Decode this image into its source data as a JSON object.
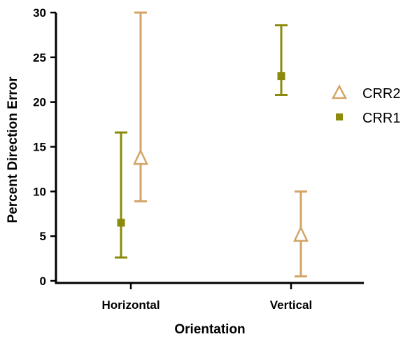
{
  "chart_data": {
    "type": "scatter",
    "title": "",
    "xlabel": "Orientation",
    "ylabel": "Percent Direction Error",
    "categories": [
      "Horizontal",
      "Vertical"
    ],
    "ylim": [
      0,
      30
    ],
    "yticks": [
      "0",
      "5",
      "10",
      "15",
      "20",
      "25",
      "30"
    ],
    "grid": false,
    "legend_position": "right",
    "series": [
      {
        "name": "CRR2",
        "marker": "open-triangle",
        "color": "#D4A467",
        "values": [
          13.7,
          5.1
        ],
        "error_low": [
          8.9,
          0.5
        ],
        "error_high": [
          30.0,
          10.0
        ]
      },
      {
        "name": "CRR1",
        "marker": "filled-square",
        "color": "#8C8A0C",
        "values": [
          6.5,
          22.9
        ],
        "error_low": [
          2.6,
          20.8
        ],
        "error_high": [
          16.6,
          28.6
        ]
      }
    ]
  }
}
